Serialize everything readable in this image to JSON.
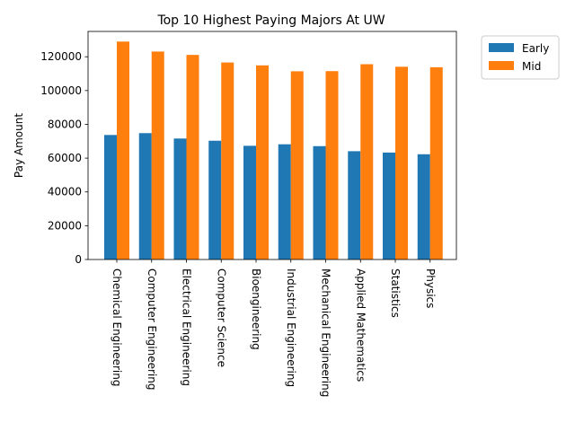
{
  "chart_data": {
    "type": "bar",
    "title": "Top 10 Highest Paying Majors At UW",
    "xlabel": "",
    "ylabel": "Pay Amount",
    "categories": [
      "Chemical Engineering",
      "Computer Engineering",
      "Electrical Engineering",
      "Computer Science",
      "Bioengineering",
      "Industrial Engineering",
      "Mechanical Engineering",
      "Applied Mathematics",
      "Statistics",
      "Physics"
    ],
    "series": [
      {
        "name": "Early",
        "color": "#1f77b4",
        "values": [
          73700,
          74800,
          71600,
          70300,
          67300,
          68200,
          67100,
          64100,
          63300,
          62300
        ]
      },
      {
        "name": "Mid",
        "color": "#ff7f0e",
        "values": [
          129000,
          123100,
          121100,
          116600,
          114900,
          111400,
          111500,
          115600,
          114100,
          113800
        ]
      }
    ],
    "ylim": [
      0,
      135000
    ],
    "yticks": [
      0,
      20000,
      40000,
      60000,
      80000,
      100000,
      120000
    ],
    "legend_position": "outside-top-right",
    "grid": false
  }
}
